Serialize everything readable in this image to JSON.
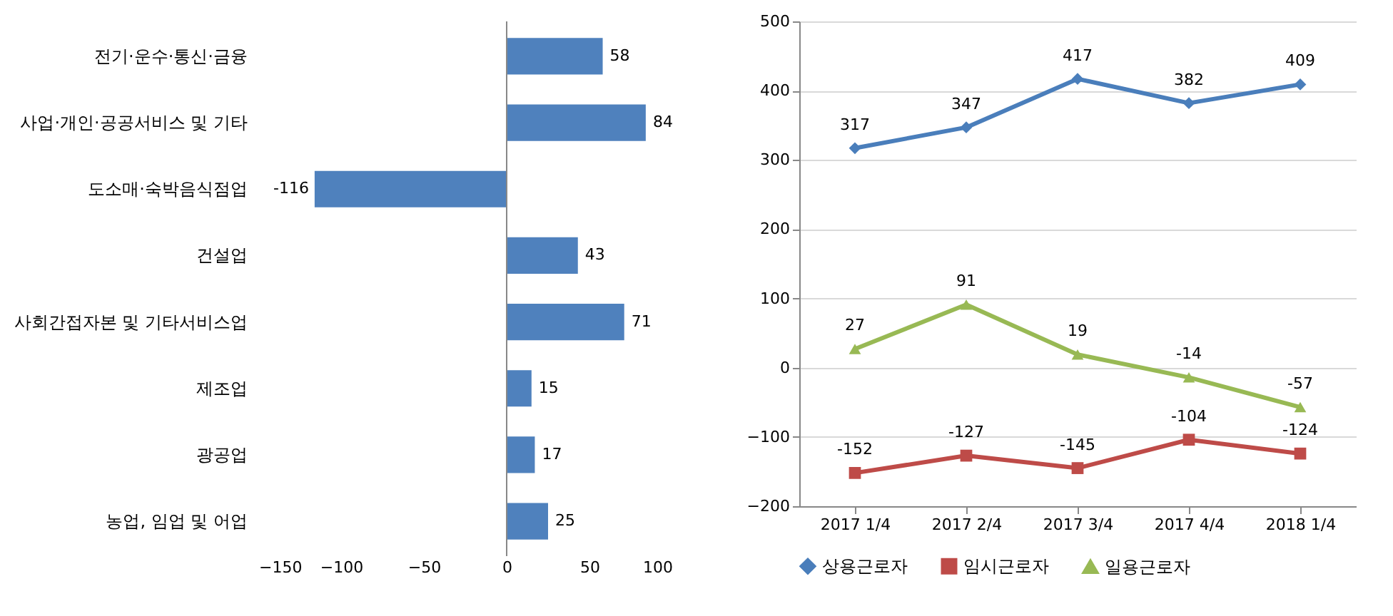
{
  "chart_data": [
    {
      "type": "bar",
      "orientation": "horizontal",
      "categories": [
        "전기·운수·통신·금융",
        "사업·개인·공공서비스 및 기타",
        "도소매·숙박음식점업",
        "건설업",
        "사회간접자본 및 기타서비스업",
        "제조업",
        "광공업",
        "농업, 임업 및 어업"
      ],
      "values": [
        58,
        84,
        -116,
        43,
        71,
        15,
        17,
        25
      ],
      "color": "#4f81bd",
      "xlim": [
        -150,
        100
      ],
      "xticks": [
        -150,
        -100,
        -50,
        0,
        50,
        100
      ],
      "data_labels": true
    },
    {
      "type": "line",
      "categories": [
        "2017 1/4",
        "2017 2/4",
        "2017 3/4",
        "2017 4/4",
        "2018 1/4"
      ],
      "series": [
        {
          "name": "상용근로자",
          "color": "#4a7ebb",
          "values": [
            317,
            347,
            417,
            382,
            409
          ],
          "marker": "diamond"
        },
        {
          "name": "임시근로자",
          "color": "#be4b48",
          "values": [
            -152,
            -127,
            -145,
            -104,
            -124
          ],
          "marker": "square"
        },
        {
          "name": "일용근로자",
          "color": "#98b954",
          "values": [
            27,
            91,
            19,
            -14,
            -57
          ],
          "marker": "triangle"
        }
      ],
      "ylim": [
        -200,
        500
      ],
      "yticks": [
        -200,
        -100,
        0,
        100,
        200,
        300,
        400,
        500
      ],
      "grid": "y",
      "legend": "bottom",
      "data_labels": true
    }
  ]
}
